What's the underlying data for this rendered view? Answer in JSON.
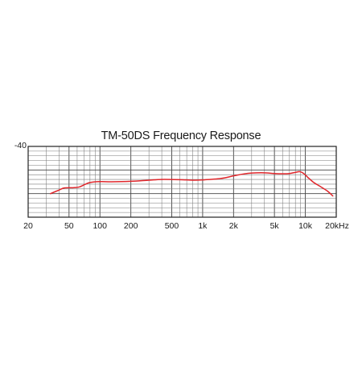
{
  "chart_data": {
    "type": "line",
    "title": "TM-50DS Frequency Response",
    "xscale": "log",
    "xlim": [
      20,
      20000
    ],
    "ylim": [
      -70,
      -40
    ],
    "y_tick_labels": [
      {
        "value": -40,
        "label": "-40"
      }
    ],
    "x_tick_labels": [
      {
        "value": 20,
        "label": "20"
      },
      {
        "value": 50,
        "label": "50"
      },
      {
        "value": 100,
        "label": "100"
      },
      {
        "value": 200,
        "label": "200"
      },
      {
        "value": 500,
        "label": "500"
      },
      {
        "value": 1000,
        "label": "1k"
      },
      {
        "value": 2000,
        "label": "2k"
      },
      {
        "value": 5000,
        "label": "5k"
      },
      {
        "value": 10000,
        "label": "10k"
      },
      {
        "value": 20000,
        "label": "20kHz"
      }
    ],
    "grid": true,
    "series": [
      {
        "color": "#e0262b",
        "points": [
          {
            "x": 33,
            "y": -60
          },
          {
            "x": 40,
            "y": -58.5
          },
          {
            "x": 45,
            "y": -57.6
          },
          {
            "x": 55,
            "y": -57.5
          },
          {
            "x": 63,
            "y": -57.2
          },
          {
            "x": 70,
            "y": -56.3
          },
          {
            "x": 80,
            "y": -55.3
          },
          {
            "x": 100,
            "y": -54.9
          },
          {
            "x": 130,
            "y": -55.0
          },
          {
            "x": 200,
            "y": -54.8
          },
          {
            "x": 300,
            "y": -54.3
          },
          {
            "x": 400,
            "y": -54.0
          },
          {
            "x": 600,
            "y": -54.1
          },
          {
            "x": 800,
            "y": -54.3
          },
          {
            "x": 1000,
            "y": -54.2
          },
          {
            "x": 1500,
            "y": -53.6
          },
          {
            "x": 2000,
            "y": -52.5
          },
          {
            "x": 2500,
            "y": -51.7
          },
          {
            "x": 3000,
            "y": -51.3
          },
          {
            "x": 4000,
            "y": -51.2
          },
          {
            "x": 5000,
            "y": -51.5
          },
          {
            "x": 6000,
            "y": -51.6
          },
          {
            "x": 7000,
            "y": -51.5
          },
          {
            "x": 8000,
            "y": -51.0
          },
          {
            "x": 8800,
            "y": -50.7
          },
          {
            "x": 9500,
            "y": -51.3
          },
          {
            "x": 10500,
            "y": -53.0
          },
          {
            "x": 12000,
            "y": -55.2
          },
          {
            "x": 14000,
            "y": -57.0
          },
          {
            "x": 16500,
            "y": -59.0
          },
          {
            "x": 18500,
            "y": -61.0
          }
        ]
      }
    ]
  },
  "colors": {
    "line": "#e0262b",
    "grid_major": "#444444",
    "grid_minor": "#7a7a7a",
    "frame": "#222222",
    "text": "#1a1a1a"
  }
}
